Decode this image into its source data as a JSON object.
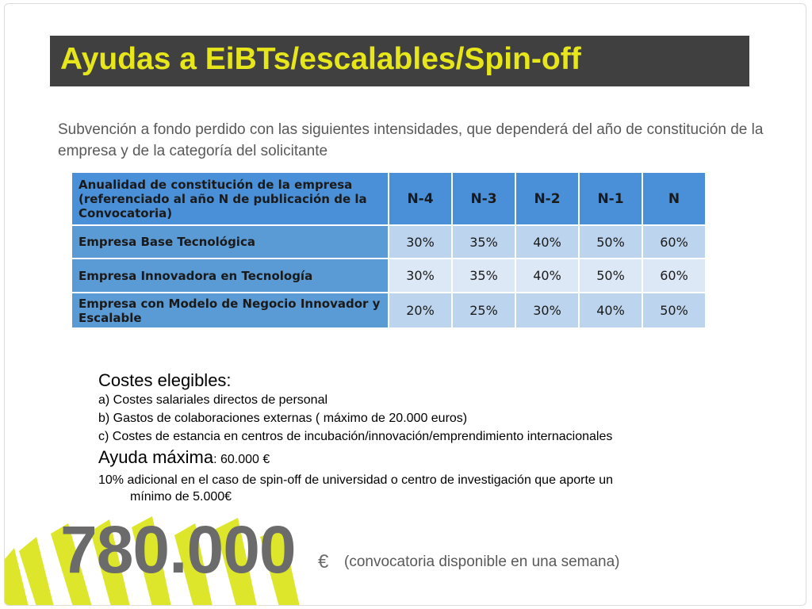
{
  "slide": {
    "title": "Ayudas a EiBTs/escalables/Spin-off",
    "intro": "Subvención a fondo perdido con las siguientes intensidades, que dependerá del año de constitución de la empresa y de la categoría del solicitante",
    "accent_color": "#e6e61a",
    "title_bar_color": "#404040"
  },
  "table": {
    "header_label": "Anualidad de constitución de la empresa (referenciado al año N de publicación de la Convocatoria)",
    "columns": [
      "N-4",
      "N-3",
      "N-2",
      "N-1",
      "N"
    ],
    "rows": [
      {
        "label": "Empresa Base Tecnológica",
        "values": [
          "30%",
          "35%",
          "40%",
          "50%",
          "60%"
        ]
      },
      {
        "label": "Empresa Innovadora en Tecnología",
        "values": [
          "30%",
          "35%",
          "40%",
          "50%",
          "60%"
        ]
      },
      {
        "label": "Empresa con Modelo de Negocio Innovador y Escalable",
        "values": [
          "20%",
          "25%",
          "30%",
          "40%",
          "50%"
        ]
      }
    ]
  },
  "costs": {
    "heading": "Costes elegibles:",
    "items": [
      "a) Costes salariales directos de personal",
      "b) Gastos de colaboraciones externas ( máximo de 20.000 euros)",
      "c) Costes de estancia en centros de incubación/innovación/emprendimiento internacionales"
    ],
    "max_label": "Ayuda máxima",
    "max_value": ": 60.000 €",
    "extra_line1": "10% adicional en el caso de spin-off de universidad o centro de investigación que aporte un",
    "extra_line2": "mínimo de 5.000€"
  },
  "budget": {
    "amount": "780.000",
    "currency": "€",
    "note": "(convocatoria disponible en una semana)"
  }
}
